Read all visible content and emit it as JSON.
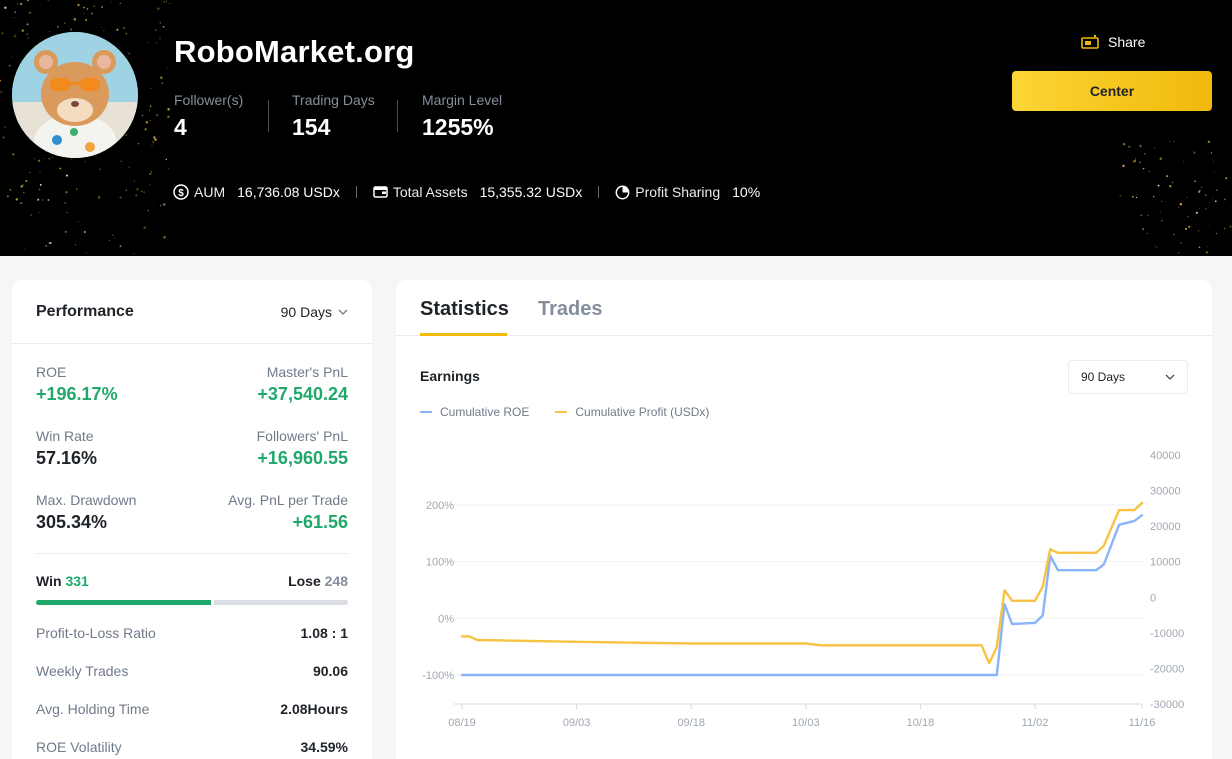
{
  "header": {
    "name": "RoboMarket.org",
    "stats": [
      {
        "label": "Follower(s)",
        "value": "4"
      },
      {
        "label": "Trading Days",
        "value": "154"
      },
      {
        "label": "Margin Level",
        "value": "1255%"
      }
    ],
    "info": [
      {
        "icon": "dollar-circle-icon",
        "label": "AUM",
        "value": "16,736.08 USDx"
      },
      {
        "icon": "wallet-icon",
        "label": "Total Assets",
        "value": "15,355.32 USDx"
      },
      {
        "icon": "pie-chart-icon",
        "label": "Profit Sharing",
        "value": "10%"
      }
    ],
    "share_label": "Share",
    "center_label": "Center"
  },
  "performance": {
    "title": "Performance",
    "period": "90 Days",
    "metrics": [
      {
        "left": {
          "label": "ROE",
          "value": "+196.17%",
          "positive": true
        },
        "right": {
          "label": "Master's PnL",
          "value": "+37,540.24",
          "positive": true
        }
      },
      {
        "left": {
          "label": "Win Rate",
          "value": "57.16%",
          "positive": false
        },
        "right": {
          "label": "Followers' PnL",
          "value": "+16,960.55",
          "positive": true
        }
      },
      {
        "left": {
          "label": "Max. Drawdown",
          "value": "305.34%",
          "positive": false
        },
        "right": {
          "label": "Avg. PnL per Trade",
          "value": "+61.56",
          "positive": true
        }
      }
    ],
    "win_label": "Win",
    "win_count": "331",
    "lose_label": "Lose",
    "lose_count": "248",
    "win_fraction": 0.5717,
    "details": [
      {
        "label": "Profit-to-Loss Ratio",
        "value": "1.08 : 1"
      },
      {
        "label": "Weekly Trades",
        "value": "90.06"
      },
      {
        "label": "Avg. Holding Time",
        "value": "2.08Hours"
      },
      {
        "label": "ROE Volatility",
        "value": "34.59%"
      }
    ]
  },
  "statistics": {
    "tabs": [
      {
        "label": "Statistics",
        "active": true
      },
      {
        "label": "Trades",
        "active": false
      }
    ],
    "earnings_title": "Earnings",
    "period": "90 Days"
  },
  "colors": {
    "accent": "#f0b90b",
    "positive": "#20a86a",
    "roe_line": "#8ab4f8",
    "profit_line": "#f6c343"
  },
  "chart_data": {
    "type": "line",
    "x_ticks": [
      "08/19",
      "09/03",
      "09/18",
      "10/03",
      "10/18",
      "11/02",
      "11/16"
    ],
    "y_left_ticks": [
      "200%",
      "100%",
      "0%",
      "-100%"
    ],
    "y_left_range": [
      -100,
      200
    ],
    "y_right_ticks": [
      "40000",
      "30000",
      "20000",
      "10000",
      "0",
      "-10000",
      "-20000",
      "-30000"
    ],
    "y_right_range": [
      -30000,
      40000
    ],
    "grid": true,
    "legend_position": "top-left",
    "series": [
      {
        "name": "Cumulative ROE",
        "axis": "left",
        "color": "#8ab4f8",
        "x": [
          "08/19",
          "09/03",
          "09/18",
          "10/03",
          "10/18",
          "10/26",
          "10/28",
          "10/29",
          "10/30",
          "11/02",
          "11/03",
          "11/04",
          "11/05",
          "11/10",
          "11/11",
          "11/13",
          "11/15",
          "11/16"
        ],
        "values": [
          -100,
          -100,
          -100,
          -100,
          -100,
          -100,
          -100,
          25,
          -10,
          -8,
          5,
          110,
          85,
          85,
          95,
          165,
          172,
          182
        ]
      },
      {
        "name": "Cumulative Profit (USDx)",
        "axis": "right",
        "color": "#f6c343",
        "x": [
          "08/19",
          "08/20",
          "08/21",
          "09/03",
          "09/18",
          "10/03",
          "10/05",
          "10/18",
          "10/26",
          "10/27",
          "10/28",
          "10/29",
          "10/30",
          "11/02",
          "11/03",
          "11/04",
          "11/05",
          "11/10",
          "11/11",
          "11/13",
          "11/15",
          "11/16"
        ],
        "values": [
          -11000,
          -11000,
          -12000,
          -12500,
          -13000,
          -13000,
          -13500,
          -13500,
          -13500,
          -18500,
          -14000,
          2000,
          -1000,
          -1000,
          3000,
          13500,
          12500,
          12500,
          14500,
          24500,
          24500,
          26500
        ]
      }
    ]
  }
}
